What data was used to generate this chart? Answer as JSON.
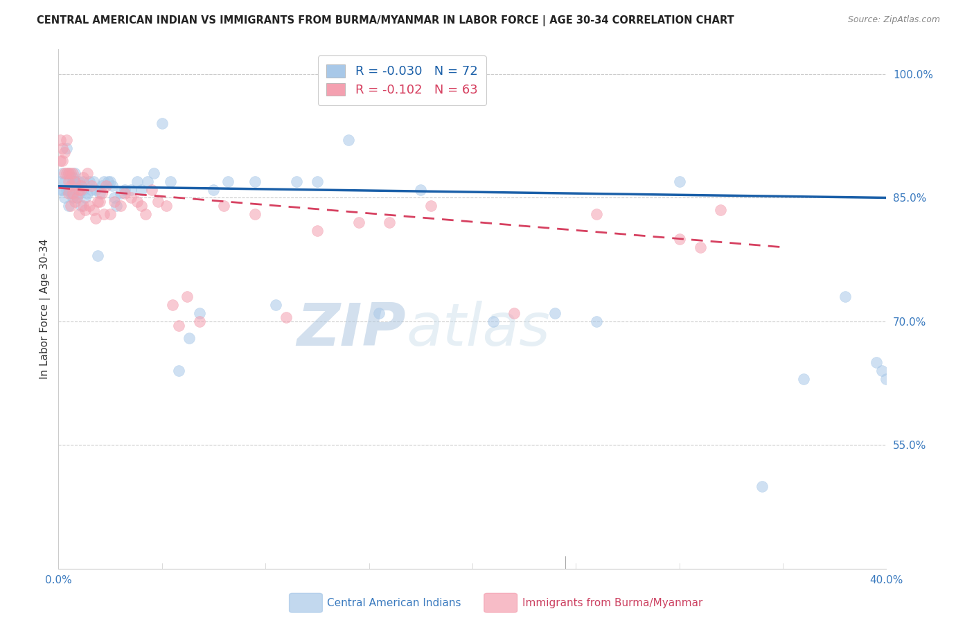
{
  "title": "CENTRAL AMERICAN INDIAN VS IMMIGRANTS FROM BURMA/MYANMAR IN LABOR FORCE | AGE 30-34 CORRELATION CHART",
  "source": "Source: ZipAtlas.com",
  "ylabel": "In Labor Force | Age 30-34",
  "xlim": [
    0.0,
    0.4
  ],
  "ylim": [
    0.4,
    1.03
  ],
  "blue_R": -0.03,
  "blue_N": 72,
  "pink_R": -0.102,
  "pink_N": 63,
  "blue_color": "#a8c8e8",
  "pink_color": "#f4a0b0",
  "blue_line_color": "#1a5fa8",
  "pink_line_color": "#d64060",
  "blue_label": "Central American Indians",
  "pink_label": "Immigrants from Burma/Myanmar",
  "watermark_zip": "ZIP",
  "watermark_atlas": "atlas",
  "blue_trend_x": [
    0.0,
    0.4
  ],
  "blue_trend_y": [
    0.864,
    0.85
  ],
  "pink_trend_x": [
    0.0,
    0.35
  ],
  "pink_trend_y": [
    0.862,
    0.79
  ],
  "blue_scatter_x": [
    0.001,
    0.001,
    0.002,
    0.002,
    0.003,
    0.003,
    0.004,
    0.004,
    0.005,
    0.005,
    0.005,
    0.006,
    0.006,
    0.007,
    0.007,
    0.007,
    0.008,
    0.008,
    0.009,
    0.009,
    0.01,
    0.01,
    0.011,
    0.011,
    0.012,
    0.012,
    0.013,
    0.014,
    0.015,
    0.016,
    0.017,
    0.018,
    0.019,
    0.02,
    0.021,
    0.022,
    0.024,
    0.025,
    0.026,
    0.027,
    0.028,
    0.03,
    0.032,
    0.035,
    0.038,
    0.04,
    0.043,
    0.046,
    0.05,
    0.054,
    0.058,
    0.063,
    0.068,
    0.075,
    0.082,
    0.095,
    0.105,
    0.115,
    0.125,
    0.14,
    0.155,
    0.175,
    0.21,
    0.24,
    0.26,
    0.3,
    0.34,
    0.36,
    0.38,
    0.395,
    0.398,
    0.4
  ],
  "blue_scatter_y": [
    0.86,
    0.87,
    0.86,
    0.88,
    0.87,
    0.85,
    0.86,
    0.91,
    0.88,
    0.86,
    0.84,
    0.875,
    0.855,
    0.875,
    0.87,
    0.85,
    0.87,
    0.88,
    0.865,
    0.85,
    0.87,
    0.855,
    0.865,
    0.84,
    0.87,
    0.86,
    0.85,
    0.855,
    0.87,
    0.86,
    0.87,
    0.86,
    0.78,
    0.855,
    0.865,
    0.87,
    0.87,
    0.87,
    0.865,
    0.85,
    0.84,
    0.855,
    0.86,
    0.86,
    0.87,
    0.86,
    0.87,
    0.88,
    0.94,
    0.87,
    0.64,
    0.68,
    0.71,
    0.86,
    0.87,
    0.87,
    0.72,
    0.87,
    0.87,
    0.92,
    0.71,
    0.86,
    0.7,
    0.71,
    0.7,
    0.87,
    0.5,
    0.63,
    0.73,
    0.65,
    0.64,
    0.63
  ],
  "pink_scatter_x": [
    0.001,
    0.001,
    0.002,
    0.002,
    0.003,
    0.003,
    0.004,
    0.004,
    0.005,
    0.005,
    0.005,
    0.006,
    0.006,
    0.006,
    0.007,
    0.007,
    0.008,
    0.008,
    0.009,
    0.01,
    0.01,
    0.011,
    0.011,
    0.012,
    0.012,
    0.013,
    0.014,
    0.015,
    0.016,
    0.017,
    0.018,
    0.019,
    0.02,
    0.021,
    0.022,
    0.023,
    0.025,
    0.027,
    0.03,
    0.032,
    0.035,
    0.038,
    0.04,
    0.042,
    0.045,
    0.048,
    0.052,
    0.055,
    0.058,
    0.062,
    0.068,
    0.08,
    0.095,
    0.11,
    0.125,
    0.145,
    0.16,
    0.18,
    0.22,
    0.26,
    0.3,
    0.32,
    0.31
  ],
  "pink_scatter_y": [
    0.895,
    0.92,
    0.895,
    0.91,
    0.905,
    0.88,
    0.88,
    0.92,
    0.87,
    0.855,
    0.88,
    0.88,
    0.865,
    0.84,
    0.88,
    0.855,
    0.87,
    0.845,
    0.85,
    0.86,
    0.83,
    0.865,
    0.86,
    0.875,
    0.84,
    0.835,
    0.88,
    0.84,
    0.865,
    0.835,
    0.825,
    0.845,
    0.845,
    0.855,
    0.83,
    0.865,
    0.83,
    0.845,
    0.84,
    0.855,
    0.85,
    0.845,
    0.84,
    0.83,
    0.86,
    0.845,
    0.84,
    0.72,
    0.695,
    0.73,
    0.7,
    0.84,
    0.83,
    0.705,
    0.81,
    0.82,
    0.82,
    0.84,
    0.71,
    0.83,
    0.8,
    0.835,
    0.79
  ]
}
